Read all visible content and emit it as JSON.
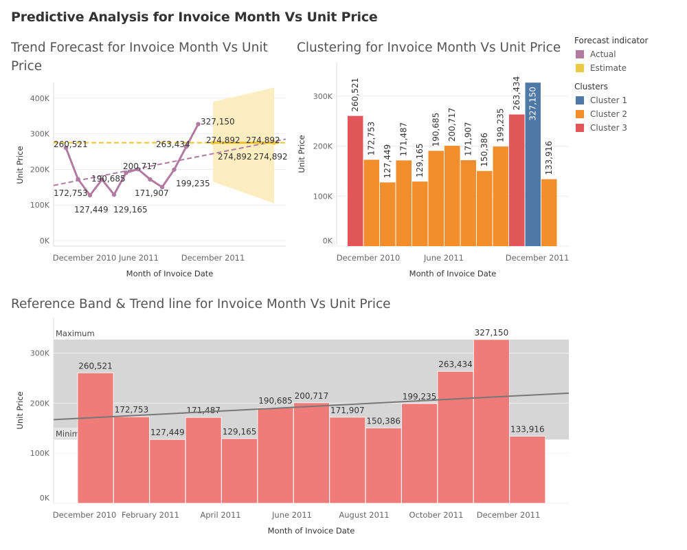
{
  "dashboard": {
    "title": "Predictive Analysis for Invoice Month Vs Unit Price"
  },
  "legend": {
    "forecast_title": "Forecast indicator",
    "forecast_items": [
      {
        "label": "Actual",
        "color": "#b07aa1"
      },
      {
        "label": "Estimate",
        "color": "#edc948"
      }
    ],
    "clusters_title": "Clusters",
    "cluster_items": [
      {
        "label": "Cluster 1",
        "color": "#4e79a7"
      },
      {
        "label": "Cluster 2",
        "color": "#f28e2b"
      },
      {
        "label": "Cluster 3",
        "color": "#e15759"
      }
    ]
  },
  "chart_data": [
    {
      "type": "line",
      "title": "Trend Forecast for Invoice Month Vs Unit Price",
      "xlabel": "Month of Invoice Date",
      "ylabel": "Unit Price",
      "x_ticks": [
        "December 2010",
        "June 2011",
        "December 2011"
      ],
      "y_ticks": [
        "0K",
        "100K",
        "200K",
        "300K",
        "400K"
      ],
      "ylim": [
        0,
        420000
      ],
      "x": [
        "2010-12",
        "2011-01",
        "2011-02",
        "2011-03",
        "2011-04",
        "2011-05",
        "2011-06",
        "2011-07",
        "2011-08",
        "2011-09",
        "2011-10",
        "2011-11",
        "2011-12"
      ],
      "series": [
        {
          "name": "Actual",
          "color": "#b07aa1",
          "values": [
            260521,
            172753,
            127449,
            171487,
            129165,
            190685,
            200717,
            171907,
            150386,
            199235,
            263434,
            327150,
            133916
          ]
        },
        {
          "name": "Estimate",
          "color": "#edc948",
          "x": [
            "2012-01",
            "2012-02",
            "2012-03",
            "2012-04",
            "2012-05"
          ],
          "values": [
            274892,
            274892,
            274892,
            274892,
            274892
          ],
          "band_upper": [
            390000,
            400000,
            410000,
            420000,
            430000
          ],
          "band_lower": [
            165000,
            150000,
            135000,
            120000,
            105000
          ]
        }
      ],
      "reference_line": 274892,
      "trend_line": {
        "start": 155000,
        "end": 285000
      },
      "labels": [
        "260,521",
        "172,753",
        "127,449",
        "190,685",
        "129,165",
        "200,717",
        "171,907",
        "199,235",
        "263,434",
        "327,150",
        "274,892",
        "274,892",
        "274,892",
        "274,892"
      ]
    },
    {
      "type": "bar",
      "title": "Clustering for Invoice Month Vs Unit Price",
      "xlabel": "Month of Invoice Date",
      "ylabel": "Unit Price",
      "x_ticks": [
        "December 2010",
        "June 2011",
        "December 2011"
      ],
      "y_ticks": [
        "0K",
        "100K",
        "200K",
        "300K"
      ],
      "ylim": [
        0,
        365000
      ],
      "categories": [
        "2010-12",
        "2011-01",
        "2011-02",
        "2011-03",
        "2011-04",
        "2011-05",
        "2011-06",
        "2011-07",
        "2011-08",
        "2011-09",
        "2011-10",
        "2011-11",
        "2011-12"
      ],
      "values": [
        260521,
        172753,
        127449,
        171487,
        129165,
        190685,
        200717,
        171907,
        150386,
        199235,
        263434,
        327150,
        133916
      ],
      "labels": [
        "260,521",
        "172,753",
        "127,449",
        "171,487",
        "129,165",
        "190,685",
        "200,717",
        "171,907",
        "150,386",
        "199,235",
        "263,434",
        "327,150",
        "133,916"
      ],
      "clusters": [
        3,
        2,
        2,
        2,
        2,
        2,
        2,
        2,
        2,
        2,
        3,
        1,
        2
      ]
    },
    {
      "type": "bar",
      "title": "Reference Band & Trend line for Invoice Month Vs Unit Price",
      "xlabel": "Month of Invoice Date",
      "ylabel": "Unit Price",
      "x_ticks": [
        "December 2010",
        "February 2011",
        "April 2011",
        "June 2011",
        "August 2011",
        "October 2011",
        "December 2011"
      ],
      "y_ticks": [
        "0K",
        "100K",
        "200K",
        "300K"
      ],
      "ylim": [
        0,
        330000
      ],
      "categories": [
        "2010-12",
        "2011-01",
        "2011-02",
        "2011-03",
        "2011-04",
        "2011-05",
        "2011-06",
        "2011-07",
        "2011-08",
        "2011-09",
        "2011-10",
        "2011-11",
        "2011-12"
      ],
      "values": [
        260521,
        172753,
        127449,
        171487,
        129165,
        190685,
        200717,
        171907,
        150386,
        199235,
        263434,
        327150,
        133916
      ],
      "labels": [
        "260,521",
        "172,753",
        "127,449",
        "171,487",
        "129,165",
        "190,685",
        "200,717",
        "171,907",
        "150,386",
        "199,235",
        "263,434",
        "327,150",
        "133,916"
      ],
      "color": "#f07c7a",
      "reference_band": {
        "min": 127449,
        "max": 327150,
        "min_label": "Minimum",
        "max_label": "Maximum"
      },
      "trend_line": {
        "start": 167000,
        "end": 220000
      }
    }
  ]
}
